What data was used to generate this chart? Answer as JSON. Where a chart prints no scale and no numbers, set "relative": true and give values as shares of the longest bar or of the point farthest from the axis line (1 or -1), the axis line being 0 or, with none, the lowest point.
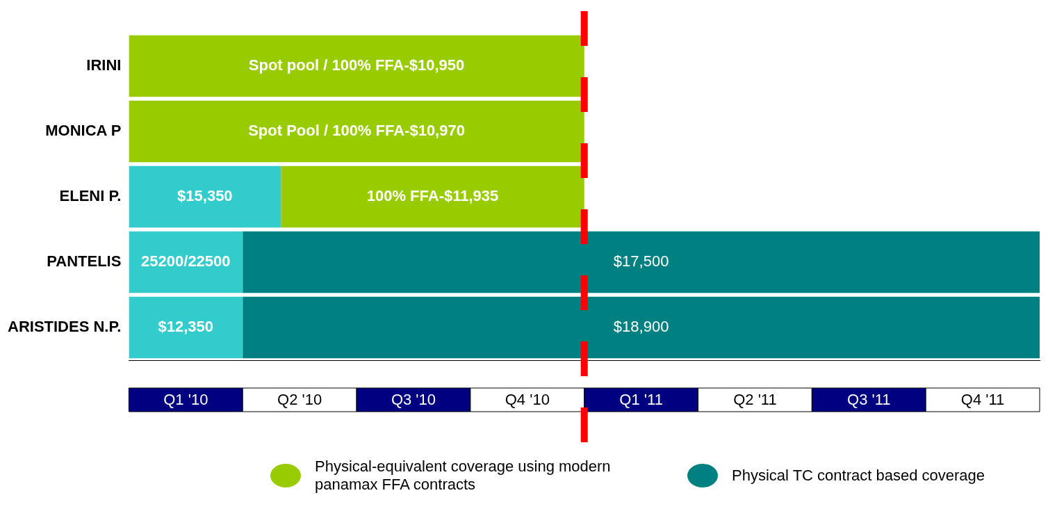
{
  "chart_data": {
    "type": "bar",
    "orientation": "horizontal",
    "stacked": true,
    "relative": true,
    "categories": [
      "IRINI",
      "MONICA P",
      "ELENI P.",
      "PANTELIS",
      "ARISTIDES N.P."
    ],
    "series": [
      {
        "color": "#33cccc",
        "values": [
          null,
          null,
          0.167,
          0.125,
          0.125
        ]
      },
      {
        "name": "Physical-equivalent coverage using modern panamax FFA contracts",
        "color": "#99cc00",
        "values": [
          0.5,
          0.5,
          0.333,
          null,
          null
        ]
      },
      {
        "name": "Physical TC contract based coverage",
        "color": "#008080",
        "values": [
          null,
          null,
          null,
          0.875,
          0.875
        ]
      }
    ],
    "annotations": [
      "Spot pool / 100% FFA-$10,950",
      "Spot Pool / 100% FFA-$10,970",
      "$15,350",
      "100% FFA-$11,935",
      "25200/22500",
      "$17,500",
      "$12,350",
      "$18,900",
      "Q1 '10",
      "Q2 '10",
      "Q3 '10",
      "Q4 '10",
      "Q1 '11",
      "Q2 '11",
      "Q3 '11",
      "Q4 '11"
    ],
    "ref_lines": [
      {
        "axis": "x",
        "value": 0.5,
        "color": "#ff0000",
        "line_style": "dashed"
      }
    ],
    "grid": false,
    "legend": "bottom"
  }
}
